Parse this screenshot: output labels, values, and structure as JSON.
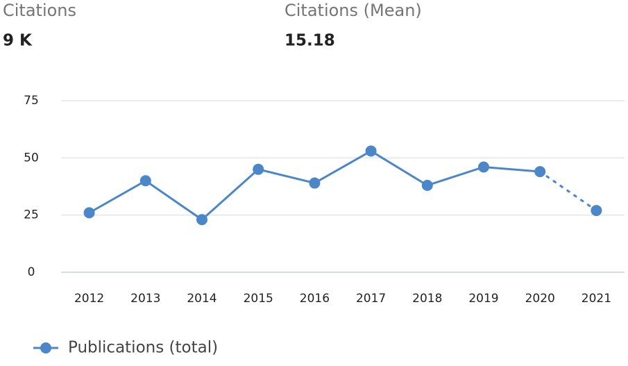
{
  "stats": [
    {
      "label": "Citations",
      "value": "9 K"
    },
    {
      "label": "Citations (Mean)",
      "value": "15.18"
    }
  ],
  "chart_data": {
    "type": "line",
    "categories": [
      "2012",
      "2013",
      "2014",
      "2015",
      "2016",
      "2017",
      "2018",
      "2019",
      "2020",
      "2021"
    ],
    "series": [
      {
        "name": "Publications (total)",
        "color": "#4a86c8",
        "values": [
          26,
          40,
          23,
          45,
          39,
          53,
          38,
          46,
          44,
          27
        ]
      }
    ],
    "ylim": [
      0,
      75
    ],
    "yticks": [
      0,
      25,
      50,
      75
    ],
    "grid": true,
    "dotted_last_segment": true,
    "legend": "bottom-left"
  }
}
